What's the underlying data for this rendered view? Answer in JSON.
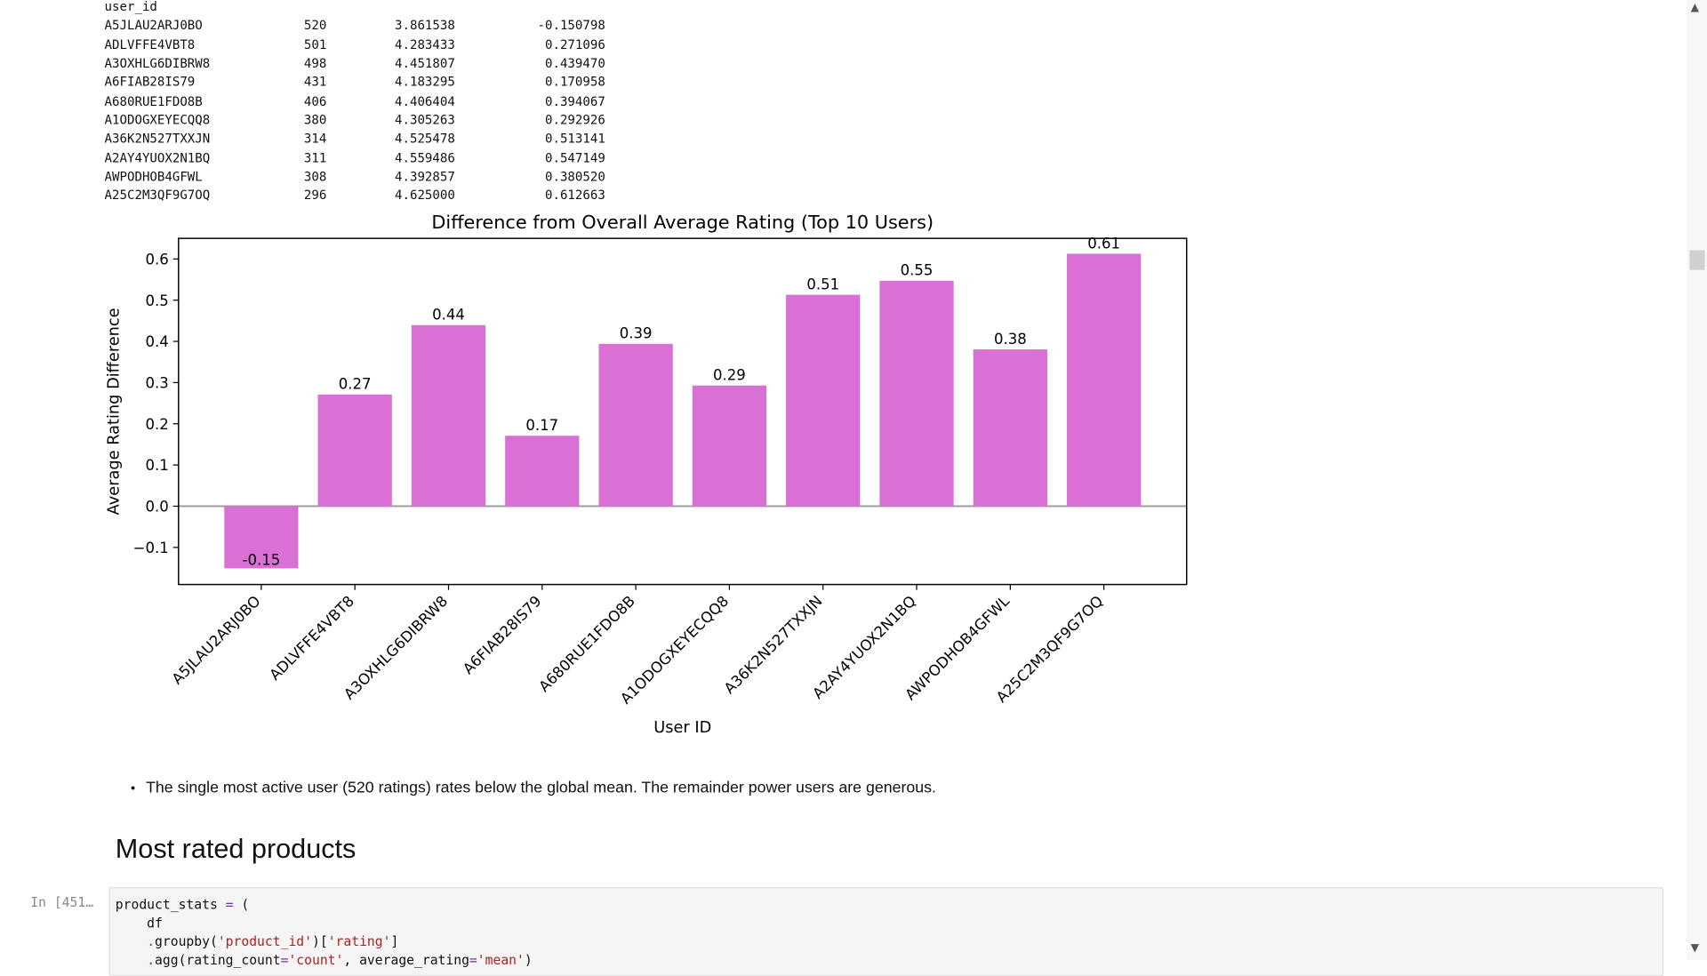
{
  "dataframe": {
    "index_name": "user_id",
    "rows": [
      [
        "A5JLAU2ARJ0BO",
        "520",
        "3.861538",
        "-0.150798"
      ],
      [
        "ADLVFFE4VBT8",
        "501",
        "4.283433",
        "0.271096"
      ],
      [
        "A3OXHLG6DIBRW8",
        "498",
        "4.451807",
        "0.439470"
      ],
      [
        "A6FIAB28IS79",
        "431",
        "4.183295",
        "0.170958"
      ],
      [
        "A680RUE1FDO8B",
        "406",
        "4.406404",
        "0.394067"
      ],
      [
        "A1ODOGXEYECQQ8",
        "380",
        "4.305263",
        "0.292926"
      ],
      [
        "A36K2N527TXXJN",
        "314",
        "4.525478",
        "0.513141"
      ],
      [
        "A2AY4YUOX2N1BQ",
        "311",
        "4.559486",
        "0.547149"
      ],
      [
        "AWPODHOB4GFWL",
        "308",
        "4.392857",
        "0.380520"
      ],
      [
        "A25C2M3QF9G7OQ",
        "296",
        "4.625000",
        "0.612663"
      ]
    ]
  },
  "chart_data": {
    "type": "bar",
    "title": "Difference from Overall Average Rating (Top 10 Users)",
    "xlabel": "User ID",
    "ylabel": "Average Rating Difference",
    "categories": [
      "A5JLAU2ARJ0BO",
      "ADLVFFE4VBT8",
      "A3OXHLG6DIBRW8",
      "A6FIAB28IS79",
      "A680RUE1FDO8B",
      "A1ODOGXEYECQQ8",
      "A36K2N527TXXJN",
      "A2AY4YUOX2N1BQ",
      "AWPODHOB4GFWL",
      "A25C2M3QF9G7OQ"
    ],
    "values": [
      -0.150798,
      0.271096,
      0.43947,
      0.170958,
      0.394067,
      0.292926,
      0.513141,
      0.547149,
      0.38052,
      0.612663
    ],
    "data_labels": [
      "-0.15",
      "0.27",
      "0.44",
      "0.17",
      "0.39",
      "0.29",
      "0.51",
      "0.55",
      "0.38",
      "0.61"
    ],
    "yticks": [
      "−0.1",
      "0.0",
      "0.1",
      "0.2",
      "0.3",
      "0.4",
      "0.5",
      "0.6"
    ],
    "ytick_values": [
      -0.1,
      0.0,
      0.1,
      0.2,
      0.3,
      0.4,
      0.5,
      0.6
    ],
    "ylim": [
      -0.19,
      0.65
    ],
    "bar_color": "#da70d6",
    "zero_line": true
  },
  "markdown": {
    "bullet": "The single most active user (520 ratings) rates below the global mean. The remainder power users are generous.",
    "heading": "Most rated products"
  },
  "code_cell": {
    "prompt": "In [451…"
  }
}
